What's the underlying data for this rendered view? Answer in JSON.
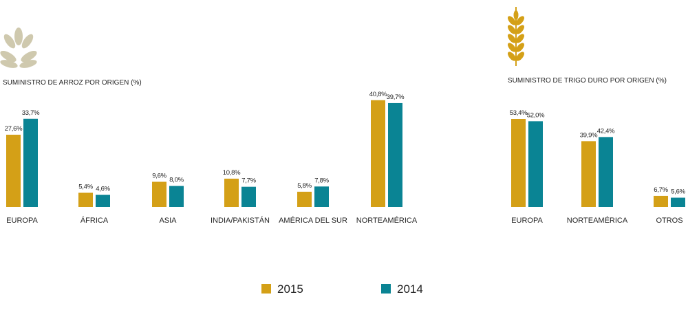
{
  "colors": {
    "s2015": "#D4A017",
    "s2014": "#0A8494",
    "rice_icon": "#CFC9AE",
    "wheat_icon": "#D4A017",
    "text": "#222222"
  },
  "legend": {
    "items": [
      "2015",
      "2014"
    ],
    "placement": "bottom-center"
  },
  "icons": {
    "rice": "rice-grains-icon",
    "wheat": "wheat-ear-icon"
  },
  "chart_data": [
    {
      "type": "bar",
      "title": "SUMINISTRO DE ARROZ POR ORIGEN (%)",
      "categories": [
        "EUROPA",
        "ÁFRICA",
        "ASIA",
        "INDIA/PAKISTÁN",
        "AMÉRICA DEL SUR",
        "NORTEAMÉRICA"
      ],
      "series": [
        {
          "name": "2015",
          "values": [
            27.6,
            5.4,
            9.6,
            10.8,
            5.8,
            40.8
          ],
          "labels": [
            "27,6%",
            "5,4%",
            "9,6%",
            "10,8%",
            "5,8%",
            "40,8%"
          ]
        },
        {
          "name": "2014",
          "values": [
            33.7,
            4.6,
            8.0,
            7.7,
            7.8,
            39.7
          ],
          "labels": [
            "33,7%",
            "4,6%",
            "8,0%",
            "7,7%",
            "7,8%",
            "39,7%"
          ]
        }
      ],
      "ylim": [
        0,
        41
      ],
      "grid": false
    },
    {
      "type": "bar",
      "title": "SUMINISTRO DE TRIGO DURO POR ORIGEN (%)",
      "categories": [
        "EUROPA",
        "NORTEAMÉRICA",
        "OTROS"
      ],
      "series": [
        {
          "name": "2015",
          "values": [
            53.4,
            39.9,
            6.7
          ],
          "labels": [
            "53,4%",
            "39,9%",
            "6,7%"
          ]
        },
        {
          "name": "2014",
          "values": [
            52.0,
            42.4,
            5.6
          ],
          "labels": [
            "52,0%",
            "42,4%",
            "5,6%"
          ]
        }
      ],
      "ylim": [
        0,
        53.4
      ],
      "grid": false
    }
  ]
}
